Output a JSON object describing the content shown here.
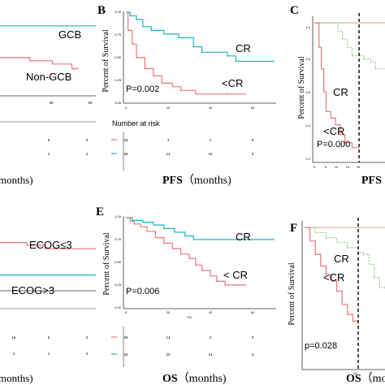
{
  "colors": {
    "red": "#e8767c",
    "teal": "#1fb3bd",
    "green": "#9ccc8f",
    "tan": "#cdb98a",
    "axis": "#333333"
  },
  "chart_data": [
    {
      "id": "A",
      "type": "line",
      "panel_letter": "",
      "annotations": [
        {
          "text": "GCB"
        },
        {
          "text": "Non-GCB"
        }
      ],
      "x_ticks": [
        "40",
        "60"
      ],
      "risk_rows": [
        [
          "5",
          "0"
        ],
        [
          "4",
          "2"
        ]
      ],
      "xlabel": "months)",
      "series": [
        {
          "color": "teal",
          "steps": [
            [
              0,
              0.88
            ],
            [
              64,
              0.88
            ]
          ]
        },
        {
          "color": "red",
          "steps": [
            [
              0,
              0.48
            ],
            [
              20,
              0.44
            ],
            [
              35,
              0.4
            ],
            [
              48,
              0.34
            ],
            [
              52,
              0.34
            ]
          ]
        }
      ]
    },
    {
      "id": "B",
      "type": "line",
      "panel_letter": "B",
      "ylabel": "Percent of Survival",
      "y_ticks": [
        "0.00",
        "0.25",
        "0.50",
        "0.75",
        "1.00"
      ],
      "x_ticks": [
        "0",
        "20",
        "40",
        "60"
      ],
      "xlim": [
        0,
        70
      ],
      "ylim": [
        0,
        1
      ],
      "annotations": [
        {
          "text": "CR"
        },
        {
          "text": "<CR"
        },
        {
          "text": "P=0.002"
        }
      ],
      "risk_title": "Number at risk",
      "risk_rows": [
        [
          "26",
          "4",
          "1",
          "0"
        ],
        [
          "25",
          "14",
          "10",
          "3"
        ]
      ],
      "xlabel_bold": "PFS",
      "xlabel_rest": "（months)",
      "series": [
        {
          "color": "teal",
          "steps": [
            [
              0,
              1.0
            ],
            [
              2,
              0.96
            ],
            [
              5,
              0.92
            ],
            [
              8,
              0.84
            ],
            [
              12,
              0.8
            ],
            [
              18,
              0.76
            ],
            [
              25,
              0.72
            ],
            [
              32,
              0.62
            ],
            [
              36,
              0.56
            ],
            [
              45,
              0.56
            ],
            [
              48,
              0.52
            ],
            [
              52,
              0.46
            ],
            [
              70,
              0.46
            ]
          ]
        },
        {
          "color": "red",
          "steps": [
            [
              0,
              1.0
            ],
            [
              1,
              0.8
            ],
            [
              3,
              0.65
            ],
            [
              5,
              0.5
            ],
            [
              9,
              0.38
            ],
            [
              13,
              0.3
            ],
            [
              17,
              0.22
            ],
            [
              22,
              0.18
            ],
            [
              26,
              0.14
            ],
            [
              33,
              0.1
            ],
            [
              48,
              0.1
            ],
            [
              57,
              0.1
            ]
          ]
        }
      ]
    },
    {
      "id": "C",
      "type": "line",
      "panel_letter": "C",
      "ylabel": "Percent of Survival",
      "y_ticks": [
        "0.2",
        "0.4",
        "0.6",
        "0.8",
        "1.0"
      ],
      "x_ticks": [
        "0",
        "5",
        "10",
        "15",
        "20"
      ],
      "xlim": [
        0,
        30
      ],
      "ylim": [
        0.15,
        1.04
      ],
      "cutoff_x": 19,
      "annotations": [
        {
          "text": "CR"
        },
        {
          "text": "<CR"
        },
        {
          "text": "P=0.000"
        }
      ],
      "xlabel_bold": "PFS",
      "series": [
        {
          "color": "tan",
          "steps": [
            [
              0,
              1.0
            ],
            [
              30,
              1.0
            ]
          ]
        },
        {
          "color": "green",
          "steps": [
            [
              0,
              1.0
            ],
            [
              10,
              0.95
            ],
            [
              12,
              0.9
            ],
            [
              14,
              0.85
            ],
            [
              16,
              0.8
            ],
            [
              19,
              0.8
            ]
          ]
        },
        {
          "color": "red",
          "steps": [
            [
              0,
              1.0
            ],
            [
              2,
              0.85
            ],
            [
              3,
              0.72
            ],
            [
              4,
              0.58
            ],
            [
              5,
              0.46
            ],
            [
              7,
              0.42
            ],
            [
              9,
              0.38
            ],
            [
              11,
              0.32
            ],
            [
              13,
              0.27
            ],
            [
              16,
              0.24
            ],
            [
              19,
              0.24
            ]
          ]
        },
        {
          "color": "green",
          "steps": [
            [
              19,
              0.8
            ],
            [
              20,
              0.8
            ],
            [
              21,
              0.78
            ],
            [
              24,
              0.76
            ],
            [
              26,
              0.72
            ],
            [
              30,
              0.72
            ]
          ]
        }
      ]
    },
    {
      "id": "D",
      "type": "line",
      "panel_letter": "",
      "annotations": [
        {
          "text": "ECOG≤3"
        },
        {
          "text": "ECOG>3"
        }
      ],
      "x_ticks": [
        "40",
        "60"
      ],
      "risk_rows": [
        [
          "16",
          "5",
          "3"
        ],
        [
          "2",
          "1",
          "0"
        ]
      ],
      "xlabel": "months)",
      "series": [
        {
          "color": "red",
          "steps": [
            [
              0,
              0.55
            ],
            [
              18,
              0.52
            ],
            [
              30,
              0.48
            ],
            [
              64,
              0.48
            ]
          ]
        },
        {
          "color": "teal",
          "steps": [
            [
              0,
              0.18
            ],
            [
              64,
              0.18
            ]
          ]
        }
      ]
    },
    {
      "id": "E",
      "type": "line",
      "panel_letter": "E",
      "ylabel": "Percent of Survival",
      "y_ticks": [
        "0.00",
        "0.25",
        "0.50",
        "0.75",
        "1.00"
      ],
      "x_ticks": [
        "0",
        "20",
        "40",
        "60"
      ],
      "xlim": [
        0,
        70
      ],
      "ylim": [
        0,
        1
      ],
      "x_axis_caption": "OS",
      "annotations": [
        {
          "text": "CR"
        },
        {
          "text": "< CR"
        },
        {
          "text": "P=0.006"
        }
      ],
      "risk_rows": [
        [
          "26",
          "14",
          "4",
          "0"
        ],
        [
          "25",
          "20",
          "14",
          "3"
        ]
      ],
      "xlabel_bold": "OS",
      "xlabel_rest": "（months)",
      "series": [
        {
          "color": "teal",
          "steps": [
            [
              0,
              1.0
            ],
            [
              3,
              0.97
            ],
            [
              8,
              0.95
            ],
            [
              13,
              0.92
            ],
            [
              18,
              0.88
            ],
            [
              23,
              0.84
            ],
            [
              28,
              0.8
            ],
            [
              32,
              0.76
            ],
            [
              70,
              0.76
            ]
          ]
        },
        {
          "color": "red",
          "steps": [
            [
              0,
              1.0
            ],
            [
              2,
              0.96
            ],
            [
              4,
              0.93
            ],
            [
              7,
              0.9
            ],
            [
              10,
              0.85
            ],
            [
              14,
              0.78
            ],
            [
              18,
              0.72
            ],
            [
              22,
              0.66
            ],
            [
              26,
              0.6
            ],
            [
              30,
              0.55
            ],
            [
              33,
              0.48
            ],
            [
              36,
              0.42
            ],
            [
              40,
              0.36
            ],
            [
              43,
              0.3
            ],
            [
              47,
              0.26
            ],
            [
              57,
              0.26
            ]
          ]
        }
      ]
    },
    {
      "id": "F",
      "type": "line",
      "panel_letter": "F",
      "ylabel": "Percent of Survival",
      "x_ticks": [
        "20"
      ],
      "xlim": [
        0,
        30
      ],
      "ylim": [
        0.15,
        1.04
      ],
      "cutoff_x": 20,
      "annotations": [
        {
          "text": "CR"
        },
        {
          "text": "<CR"
        },
        {
          "text": "p=0.028"
        }
      ],
      "xlabel_bold": "OS",
      "xlabel_rest": "（mo",
      "series": [
        {
          "color": "tan",
          "steps": [
            [
              0,
              1.0
            ],
            [
              30,
              1.0
            ]
          ]
        },
        {
          "color": "green",
          "steps": [
            [
              0,
              1.0
            ],
            [
              4,
              0.97
            ],
            [
              8,
              0.94
            ],
            [
              12,
              0.91
            ],
            [
              16,
              0.88
            ],
            [
              20,
              0.85
            ],
            [
              22,
              0.84
            ],
            [
              24,
              0.78
            ],
            [
              26,
              0.7
            ],
            [
              28,
              0.64
            ],
            [
              30,
              0.64
            ]
          ]
        },
        {
          "color": "red",
          "steps": [
            [
              0,
              1.0
            ],
            [
              2,
              0.92
            ],
            [
              4,
              0.84
            ],
            [
              6,
              0.77
            ],
            [
              8,
              0.72
            ],
            [
              10,
              0.68
            ],
            [
              12,
              0.62
            ],
            [
              14,
              0.54
            ],
            [
              16,
              0.48
            ],
            [
              18,
              0.44
            ],
            [
              20,
              0.44
            ]
          ]
        }
      ]
    }
  ]
}
